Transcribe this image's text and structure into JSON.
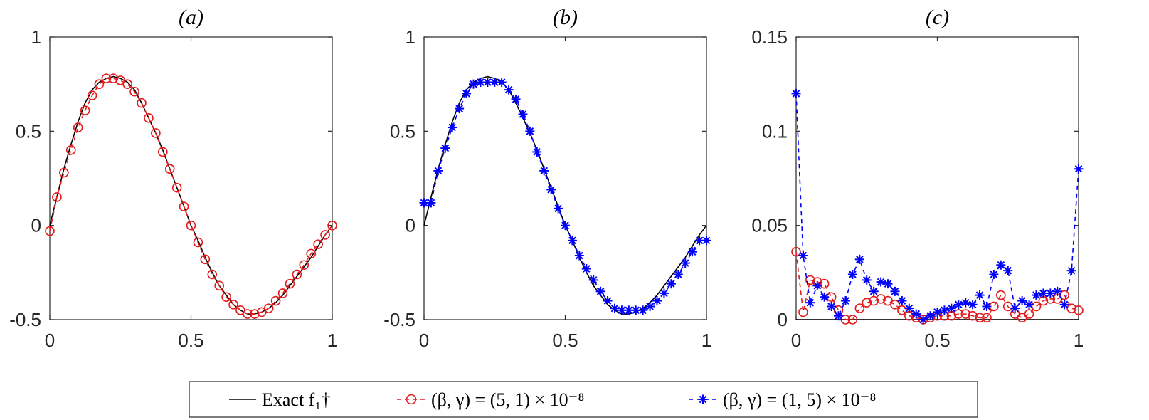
{
  "legend": {
    "items": [
      {
        "label": "Exact f₁†",
        "color": "#000000",
        "style": "solid"
      },
      {
        "label": "(β, γ) = (5, 1) × 10⁻⁸",
        "color": "#e41a1c",
        "style": "dashed-circle"
      },
      {
        "label": "(β, γ) = (1, 5) × 10⁻⁸",
        "color": "#0000ff",
        "style": "dashed-star"
      }
    ]
  },
  "chart_data": [
    {
      "type": "line",
      "title": "(a)",
      "xlim": [
        0,
        1
      ],
      "ylim": [
        -0.5,
        1
      ],
      "xticks": [
        0,
        0.5,
        1
      ],
      "yticks": [
        -0.5,
        0,
        0.5,
        1
      ],
      "xtick_labels": [
        "0",
        "0.5",
        "1"
      ],
      "ytick_labels": [
        "-0.5",
        "0",
        "0.5",
        "1"
      ],
      "series": [
        {
          "name": "Exact f₁†",
          "color": "#000000",
          "dash": "solid",
          "marker": "none",
          "x": [
            0,
            0.025,
            0.05,
            0.075,
            0.1,
            0.125,
            0.15,
            0.175,
            0.2,
            0.225,
            0.25,
            0.275,
            0.3,
            0.325,
            0.35,
            0.375,
            0.4,
            0.425,
            0.45,
            0.475,
            0.5,
            0.525,
            0.55,
            0.575,
            0.6,
            0.625,
            0.65,
            0.675,
            0.7,
            0.725,
            0.75,
            0.775,
            0.8,
            0.825,
            0.85,
            0.875,
            0.9,
            0.925,
            0.95,
            0.975,
            1
          ],
          "y": [
            0,
            0.15,
            0.3,
            0.43,
            0.55,
            0.65,
            0.72,
            0.76,
            0.78,
            0.79,
            0.78,
            0.76,
            0.72,
            0.65,
            0.57,
            0.49,
            0.4,
            0.3,
            0.2,
            0.1,
            0.0,
            -0.08,
            -0.17,
            -0.25,
            -0.32,
            -0.37,
            -0.42,
            -0.45,
            -0.47,
            -0.47,
            -0.46,
            -0.44,
            -0.41,
            -0.37,
            -0.32,
            -0.27,
            -0.22,
            -0.17,
            -0.11,
            -0.05,
            0.0
          ]
        },
        {
          "name": "(β, γ) = (5, 1) × 10⁻⁸",
          "color": "#e41a1c",
          "dash": "dashed",
          "marker": "circle",
          "x": [
            0,
            0.025,
            0.05,
            0.075,
            0.1,
            0.125,
            0.15,
            0.175,
            0.2,
            0.225,
            0.25,
            0.275,
            0.3,
            0.325,
            0.35,
            0.375,
            0.4,
            0.425,
            0.45,
            0.475,
            0.5,
            0.525,
            0.55,
            0.575,
            0.6,
            0.625,
            0.65,
            0.675,
            0.7,
            0.725,
            0.75,
            0.775,
            0.8,
            0.825,
            0.85,
            0.875,
            0.9,
            0.925,
            0.95,
            0.975,
            1
          ],
          "y": [
            -0.03,
            0.15,
            0.28,
            0.4,
            0.52,
            0.61,
            0.69,
            0.75,
            0.78,
            0.78,
            0.77,
            0.75,
            0.71,
            0.65,
            0.57,
            0.49,
            0.39,
            0.3,
            0.2,
            0.1,
            0.0,
            -0.09,
            -0.18,
            -0.26,
            -0.32,
            -0.38,
            -0.42,
            -0.45,
            -0.47,
            -0.47,
            -0.46,
            -0.44,
            -0.4,
            -0.36,
            -0.31,
            -0.26,
            -0.21,
            -0.15,
            -0.1,
            -0.05,
            0.0
          ]
        }
      ]
    },
    {
      "type": "line",
      "title": "(b)",
      "xlim": [
        0,
        1
      ],
      "ylim": [
        -0.5,
        1
      ],
      "xticks": [
        0,
        0.5,
        1
      ],
      "yticks": [
        -0.5,
        0,
        0.5,
        1
      ],
      "xtick_labels": [
        "0",
        "0.5",
        "1"
      ],
      "ytick_labels": [
        "-0.5",
        "0",
        "0.5",
        "1"
      ],
      "series": [
        {
          "name": "Exact f₁†",
          "color": "#000000",
          "dash": "solid",
          "marker": "none",
          "x": [
            0,
            0.025,
            0.05,
            0.075,
            0.1,
            0.125,
            0.15,
            0.175,
            0.2,
            0.225,
            0.25,
            0.275,
            0.3,
            0.325,
            0.35,
            0.375,
            0.4,
            0.425,
            0.45,
            0.475,
            0.5,
            0.525,
            0.55,
            0.575,
            0.6,
            0.625,
            0.65,
            0.675,
            0.7,
            0.725,
            0.75,
            0.775,
            0.8,
            0.825,
            0.85,
            0.875,
            0.9,
            0.925,
            0.95,
            0.975,
            1
          ],
          "y": [
            0,
            0.15,
            0.3,
            0.43,
            0.55,
            0.65,
            0.72,
            0.76,
            0.78,
            0.79,
            0.78,
            0.76,
            0.72,
            0.65,
            0.57,
            0.49,
            0.4,
            0.3,
            0.2,
            0.1,
            0.0,
            -0.08,
            -0.17,
            -0.25,
            -0.32,
            -0.37,
            -0.42,
            -0.45,
            -0.47,
            -0.47,
            -0.46,
            -0.44,
            -0.41,
            -0.37,
            -0.32,
            -0.27,
            -0.22,
            -0.17,
            -0.11,
            -0.05,
            0.0
          ]
        },
        {
          "name": "(β, γ) = (1, 5) × 10⁻⁸",
          "color": "#0000ff",
          "dash": "dashed",
          "marker": "star",
          "x": [
            0,
            0.025,
            0.05,
            0.075,
            0.1,
            0.125,
            0.15,
            0.175,
            0.2,
            0.225,
            0.25,
            0.275,
            0.3,
            0.325,
            0.35,
            0.375,
            0.4,
            0.425,
            0.45,
            0.475,
            0.5,
            0.525,
            0.55,
            0.575,
            0.6,
            0.625,
            0.65,
            0.675,
            0.7,
            0.725,
            0.75,
            0.775,
            0.8,
            0.825,
            0.85,
            0.875,
            0.9,
            0.925,
            0.95,
            0.975,
            1
          ],
          "y": [
            0.12,
            0.12,
            0.29,
            0.41,
            0.52,
            0.62,
            0.7,
            0.75,
            0.76,
            0.76,
            0.76,
            0.76,
            0.72,
            0.67,
            0.59,
            0.5,
            0.39,
            0.29,
            0.19,
            0.09,
            0.0,
            -0.08,
            -0.16,
            -0.23,
            -0.29,
            -0.35,
            -0.4,
            -0.44,
            -0.45,
            -0.45,
            -0.45,
            -0.45,
            -0.43,
            -0.4,
            -0.36,
            -0.31,
            -0.26,
            -0.2,
            -0.14,
            -0.08,
            -0.08
          ]
        }
      ]
    },
    {
      "type": "line",
      "title": "(c)",
      "xlim": [
        0,
        1
      ],
      "ylim": [
        0,
        0.15
      ],
      "xticks": [
        0,
        0.5,
        1
      ],
      "yticks": [
        0,
        0.05,
        0.1,
        0.15
      ],
      "xtick_labels": [
        "0",
        "0.5",
        "1"
      ],
      "ytick_labels": [
        "0",
        "0.05",
        "0.1",
        "0.15"
      ],
      "series": [
        {
          "name": "",
          "color": "#000000",
          "dash": "solid",
          "marker": "none",
          "x": [
            0,
            1
          ],
          "y": [
            0,
            0
          ]
        },
        {
          "name": "(β, γ) = (5, 1) × 10⁻⁸",
          "color": "#e41a1c",
          "dash": "dashed",
          "marker": "circle",
          "x": [
            0,
            0.025,
            0.05,
            0.075,
            0.1,
            0.125,
            0.15,
            0.175,
            0.2,
            0.225,
            0.25,
            0.275,
            0.3,
            0.325,
            0.35,
            0.375,
            0.4,
            0.425,
            0.45,
            0.475,
            0.5,
            0.525,
            0.55,
            0.575,
            0.6,
            0.625,
            0.65,
            0.675,
            0.7,
            0.725,
            0.75,
            0.775,
            0.8,
            0.825,
            0.85,
            0.875,
            0.9,
            0.925,
            0.95,
            0.975,
            1
          ],
          "y": [
            0.036,
            0.004,
            0.021,
            0.02,
            0.019,
            0.012,
            0.005,
            0.0,
            0.0,
            0.006,
            0.009,
            0.01,
            0.011,
            0.01,
            0.008,
            0.005,
            0.002,
            0.001,
            0.0,
            0.001,
            0.002,
            0.002,
            0.002,
            0.003,
            0.003,
            0.002,
            0.001,
            0.001,
            0.007,
            0.013,
            0.007,
            0.003,
            0.001,
            0.003,
            0.007,
            0.01,
            0.011,
            0.011,
            0.013,
            0.006,
            0.005
          ]
        },
        {
          "name": "(β, γ) = (1, 5) × 10⁻⁸",
          "color": "#0000ff",
          "dash": "dashed",
          "marker": "star",
          "x": [
            0,
            0.025,
            0.05,
            0.075,
            0.1,
            0.125,
            0.15,
            0.175,
            0.2,
            0.225,
            0.25,
            0.275,
            0.3,
            0.325,
            0.35,
            0.375,
            0.4,
            0.425,
            0.45,
            0.475,
            0.5,
            0.525,
            0.55,
            0.575,
            0.6,
            0.625,
            0.65,
            0.675,
            0.7,
            0.725,
            0.75,
            0.775,
            0.8,
            0.825,
            0.85,
            0.875,
            0.9,
            0.925,
            0.95,
            0.975,
            1
          ],
          "y": [
            0.12,
            0.034,
            0.009,
            0.018,
            0.012,
            0.007,
            0.002,
            0.01,
            0.024,
            0.032,
            0.021,
            0.015,
            0.02,
            0.019,
            0.015,
            0.01,
            0.006,
            0.003,
            0.0,
            0.002,
            0.004,
            0.005,
            0.006,
            0.008,
            0.009,
            0.008,
            0.013,
            0.007,
            0.024,
            0.029,
            0.026,
            0.006,
            0.01,
            0.008,
            0.013,
            0.014,
            0.014,
            0.015,
            0.008,
            0.026,
            0.08
          ]
        }
      ]
    }
  ]
}
